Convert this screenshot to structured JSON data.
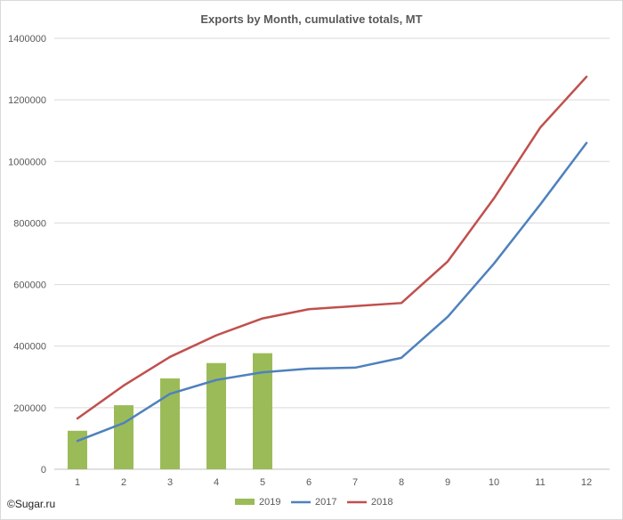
{
  "chart_data": {
    "type": "bar+line",
    "title": "Exports by Month, cumulative totals, MT",
    "xlabel": "",
    "ylabel": "",
    "categories": [
      "1",
      "2",
      "3",
      "4",
      "5",
      "6",
      "7",
      "8",
      "9",
      "10",
      "11",
      "12"
    ],
    "y_ticks": [
      "0",
      "200000",
      "400000",
      "600000",
      "800000",
      "1000000",
      "1200000",
      "1400000"
    ],
    "ylim": [
      0,
      1400000
    ],
    "grid": true,
    "legend_position": "bottom",
    "series": [
      {
        "name": "2019",
        "kind": "bar",
        "color": "#9bbb59",
        "values": [
          125000,
          208000,
          295000,
          345000,
          377000,
          null,
          null,
          null,
          null,
          null,
          null,
          null
        ]
      },
      {
        "name": "2017",
        "kind": "line",
        "color": "#4f81bd",
        "values": [
          92000,
          150000,
          245000,
          290000,
          315000,
          327000,
          330000,
          362000,
          495000,
          668000,
          860000,
          1060000
        ]
      },
      {
        "name": "2018",
        "kind": "line",
        "color": "#c0504d",
        "values": [
          165000,
          272000,
          365000,
          435000,
          490000,
          520000,
          530000,
          540000,
          675000,
          880000,
          1110000,
          1275000
        ]
      }
    ]
  },
  "watermark": "©Sugar.ru"
}
